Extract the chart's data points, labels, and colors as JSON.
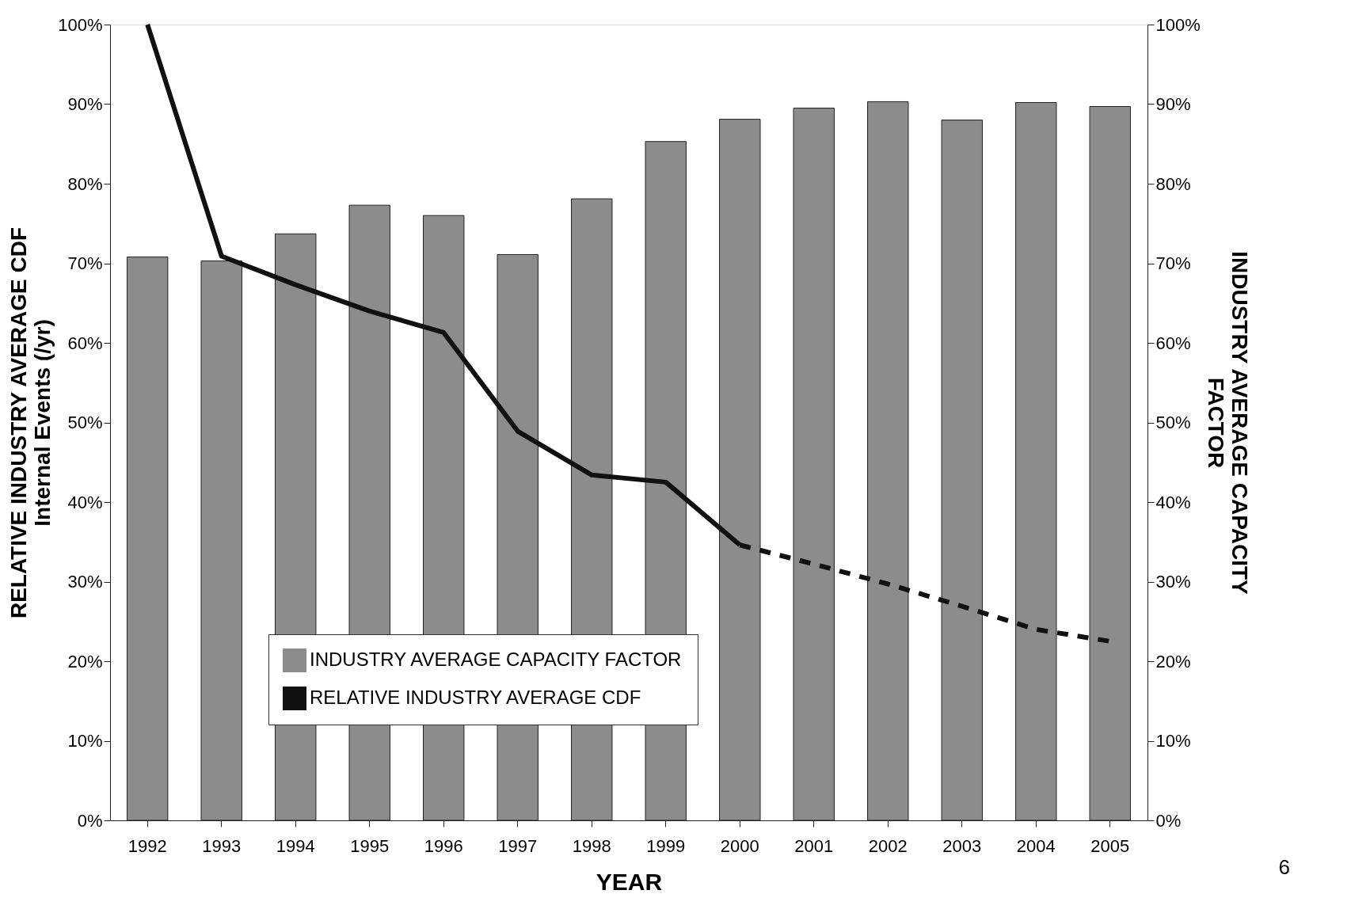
{
  "chart_data": {
    "type": "bar",
    "xlabel": "YEAR",
    "ylabel": "RELATIVE INDUSTRY AVERAGE CDF\nInternal Events (/yr)",
    "y2label": "INDUSTRY AVERAGE CAPACITY\nFACTOR",
    "categories": [
      "1992",
      "1993",
      "1994",
      "1995",
      "1996",
      "1997",
      "1998",
      "1999",
      "2000",
      "2001",
      "2002",
      "2003",
      "2004",
      "2005"
    ],
    "series": [
      {
        "name": "INDUSTRY AVERAGE CAPACITY FACTOR",
        "axis": "y2",
        "color": "#8c8c8c",
        "values": [
          70.8,
          70.3,
          73.7,
          77.3,
          76.0,
          71.1,
          78.1,
          85.3,
          88.1,
          89.5,
          90.3,
          88.0,
          90.2,
          89.7
        ]
      },
      {
        "name": "RELATIVE INDUSTRY AVERAGE CDF",
        "type": "line",
        "color": "#111111",
        "line_style": "solid",
        "values": [
          100,
          70.9,
          67.3,
          64,
          61.3,
          48.9,
          43.4,
          42.5,
          34.6,
          null,
          null,
          null,
          null,
          null
        ]
      },
      {
        "type": "line",
        "color": "#111111",
        "line_style": "dashed",
        "values": [
          null,
          null,
          null,
          null,
          null,
          null,
          null,
          null,
          34.6,
          32.2,
          29.7,
          26.9,
          24,
          22.5
        ]
      }
    ],
    "ylim": [
      0,
      100
    ],
    "yticks": [
      {
        "value": 0,
        "label": "0%"
      },
      {
        "value": 10,
        "label": "10%"
      },
      {
        "value": 20,
        "label": "20%"
      },
      {
        "value": 30,
        "label": "30%"
      },
      {
        "value": 40,
        "label": "40%"
      },
      {
        "value": 50,
        "label": "50%"
      },
      {
        "value": 60,
        "label": "60%"
      },
      {
        "value": 70,
        "label": "70%"
      },
      {
        "value": 80,
        "label": "80%"
      },
      {
        "value": 90,
        "label": "90%"
      },
      {
        "value": 100,
        "label": "100%"
      }
    ],
    "y2lim": [
      0,
      100
    ],
    "y2ticks": [
      {
        "value": 0,
        "label": "0%"
      },
      {
        "value": 10,
        "label": "10%"
      },
      {
        "value": 20,
        "label": "20%"
      },
      {
        "value": 30,
        "label": "30%"
      },
      {
        "value": 40,
        "label": "40%"
      },
      {
        "value": 50,
        "label": "50%"
      },
      {
        "value": 60,
        "label": "60%"
      },
      {
        "value": 70,
        "label": "70%"
      },
      {
        "value": 80,
        "label": "80%"
      },
      {
        "value": 90,
        "label": "90%"
      },
      {
        "value": 100,
        "label": "100%"
      }
    ],
    "legend": "bottom",
    "grid": false,
    "annotations": [
      "6"
    ]
  }
}
